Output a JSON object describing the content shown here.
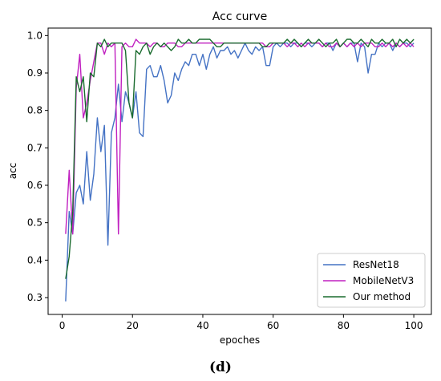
{
  "chart_data": {
    "type": "line",
    "title": "Acc curve",
    "xlabel": "epoches",
    "ylabel": "acc",
    "xlim": [
      -4,
      105
    ],
    "ylim": [
      0.255,
      1.02
    ],
    "xticks": [
      0,
      20,
      40,
      60,
      80,
      100
    ],
    "yticks": [
      0.3,
      0.4,
      0.5,
      0.6,
      0.7,
      0.8,
      0.9,
      1.0
    ],
    "grid": false,
    "legend_position": "lower-right",
    "x": [
      1,
      2,
      3,
      4,
      5,
      6,
      7,
      8,
      9,
      10,
      11,
      12,
      13,
      14,
      15,
      16,
      17,
      18,
      19,
      20,
      21,
      22,
      23,
      24,
      25,
      26,
      27,
      28,
      29,
      30,
      31,
      32,
      33,
      34,
      35,
      36,
      37,
      38,
      39,
      40,
      41,
      42,
      43,
      44,
      45,
      46,
      47,
      48,
      49,
      50,
      51,
      52,
      53,
      54,
      55,
      56,
      57,
      58,
      59,
      60,
      61,
      62,
      63,
      64,
      65,
      66,
      67,
      68,
      69,
      70,
      71,
      72,
      73,
      74,
      75,
      76,
      77,
      78,
      79,
      80,
      81,
      82,
      83,
      84,
      85,
      86,
      87,
      88,
      89,
      90,
      91,
      92,
      93,
      94,
      95,
      96,
      97,
      98,
      99,
      100
    ],
    "series": [
      {
        "name": "ResNet18",
        "color": "#4472c4",
        "values": [
          0.29,
          0.53,
          0.47,
          0.58,
          0.6,
          0.55,
          0.69,
          0.56,
          0.63,
          0.78,
          0.69,
          0.76,
          0.44,
          0.74,
          0.78,
          0.87,
          0.77,
          0.85,
          0.82,
          0.78,
          0.85,
          0.74,
          0.73,
          0.91,
          0.92,
          0.89,
          0.89,
          0.92,
          0.88,
          0.82,
          0.84,
          0.9,
          0.88,
          0.91,
          0.93,
          0.92,
          0.95,
          0.95,
          0.92,
          0.95,
          0.91,
          0.95,
          0.97,
          0.94,
          0.96,
          0.96,
          0.97,
          0.95,
          0.96,
          0.94,
          0.96,
          0.98,
          0.96,
          0.95,
          0.97,
          0.96,
          0.97,
          0.92,
          0.92,
          0.97,
          0.98,
          0.97,
          0.98,
          0.98,
          0.97,
          0.98,
          0.98,
          0.97,
          0.98,
          0.98,
          0.97,
          0.98,
          0.98,
          0.97,
          0.98,
          0.98,
          0.96,
          0.98,
          0.97,
          0.98,
          0.97,
          0.98,
          0.98,
          0.93,
          0.98,
          0.97,
          0.9,
          0.95,
          0.95,
          0.98,
          0.97,
          0.98,
          0.98,
          0.96,
          0.98,
          0.97,
          0.98,
          0.98,
          0.97,
          0.98
        ]
      },
      {
        "name": "MobileNetV3",
        "color": "#c020c0",
        "values": [
          0.47,
          0.64,
          0.47,
          0.86,
          0.95,
          0.78,
          0.82,
          0.88,
          0.93,
          0.98,
          0.98,
          0.95,
          0.98,
          0.97,
          0.98,
          0.47,
          0.97,
          0.98,
          0.97,
          0.97,
          0.99,
          0.98,
          0.98,
          0.98,
          0.97,
          0.98,
          0.98,
          0.97,
          0.97,
          0.98,
          0.98,
          0.98,
          0.97,
          0.97,
          0.98,
          0.98,
          0.98,
          0.98,
          0.98,
          0.98,
          0.98,
          0.98,
          0.98,
          0.98,
          0.98,
          0.98,
          0.98,
          0.98,
          0.98,
          0.98,
          0.98,
          0.98,
          0.98,
          0.98,
          0.98,
          0.98,
          0.98,
          0.97,
          0.97,
          0.98,
          0.98,
          0.98,
          0.98,
          0.97,
          0.98,
          0.98,
          0.97,
          0.98,
          0.97,
          0.98,
          0.98,
          0.98,
          0.98,
          0.97,
          0.98,
          0.97,
          0.97,
          0.98,
          0.97,
          0.98,
          0.97,
          0.98,
          0.97,
          0.98,
          0.97,
          0.98,
          0.98,
          0.98,
          0.97,
          0.97,
          0.98,
          0.97,
          0.98,
          0.97,
          0.98,
          0.97,
          0.98,
          0.97,
          0.98,
          0.97
        ]
      },
      {
        "name": "Our method",
        "color": "#1a6b2e",
        "values": [
          0.35,
          0.41,
          0.53,
          0.89,
          0.85,
          0.89,
          0.77,
          0.9,
          0.89,
          0.98,
          0.97,
          0.99,
          0.97,
          0.98,
          0.98,
          0.98,
          0.98,
          0.96,
          0.82,
          0.78,
          0.96,
          0.95,
          0.97,
          0.98,
          0.95,
          0.97,
          0.98,
          0.97,
          0.98,
          0.97,
          0.96,
          0.97,
          0.99,
          0.98,
          0.98,
          0.99,
          0.98,
          0.98,
          0.99,
          0.99,
          0.99,
          0.99,
          0.98,
          0.97,
          0.97,
          0.98,
          0.98,
          0.98,
          0.98,
          0.98,
          0.98,
          0.98,
          0.98,
          0.98,
          0.98,
          0.98,
          0.97,
          0.97,
          0.98,
          0.98,
          0.98,
          0.98,
          0.98,
          0.99,
          0.98,
          0.99,
          0.98,
          0.97,
          0.98,
          0.99,
          0.98,
          0.98,
          0.99,
          0.98,
          0.97,
          0.98,
          0.98,
          0.99,
          0.97,
          0.98,
          0.99,
          0.99,
          0.98,
          0.98,
          0.99,
          0.98,
          0.97,
          0.99,
          0.98,
          0.98,
          0.99,
          0.98,
          0.98,
          0.99,
          0.97,
          0.99,
          0.98,
          0.99,
          0.98,
          0.99
        ]
      }
    ]
  },
  "panel_label": "(d)"
}
